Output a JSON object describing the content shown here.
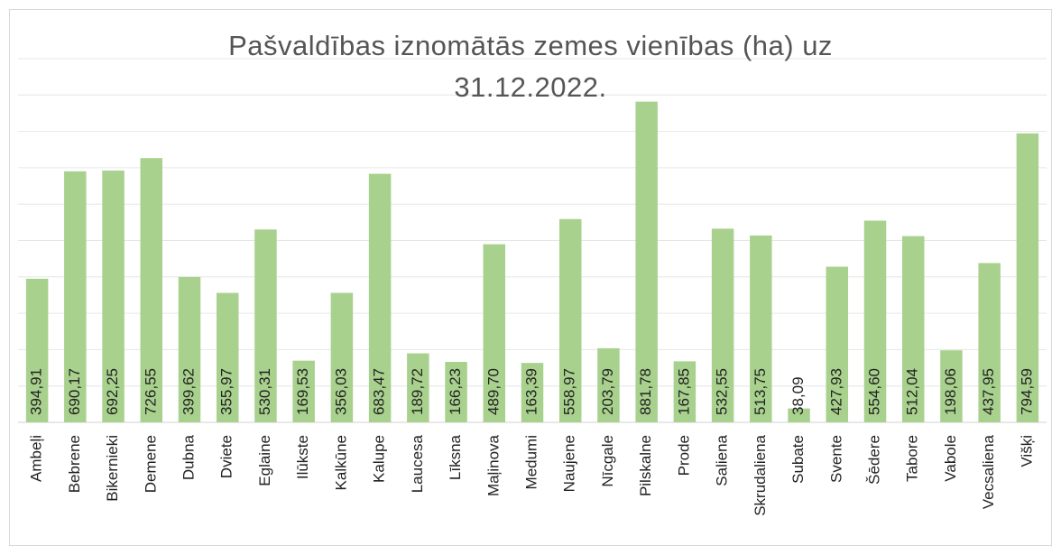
{
  "chart_data": {
    "type": "bar",
    "title": "Pašvaldības iznomātās zemes vienības (ha) uz 31.12.2022.",
    "categories": [
      "Ambeļi",
      "Bebrene",
      "Bikernieki",
      "Demene",
      "Dubna",
      "Dviete",
      "Eglaine",
      "Ilūkste",
      "Kalkūne",
      "Kalupe",
      "Laucesa",
      "Līksna",
      "Maļinova",
      "Medumi",
      "Naujene",
      "Nīcgale",
      "Pilskalne",
      "Prode",
      "Saliena",
      "Skrudaliena",
      "Subate",
      "Svente",
      "Šēdere",
      "Tabore",
      "Vabole",
      "Vecsaliena",
      "Višķi"
    ],
    "values": [
      394.91,
      690.17,
      692.25,
      726.55,
      399.62,
      355.97,
      530.31,
      169.53,
      356.03,
      683.47,
      189.72,
      166.23,
      489.7,
      163.39,
      558.97,
      203.79,
      881.78,
      167.85,
      532.55,
      513.75,
      38.09,
      427.93,
      554.6,
      512.04,
      198.06,
      437.95,
      794.59
    ],
    "value_labels": [
      "394,91",
      "690,17",
      "692,25",
      "726,55",
      "399,62",
      "355,97",
      "530,31",
      "169,53",
      "356,03",
      "683,47",
      "189,72",
      "166,23",
      "489,70",
      "163,39",
      "558,97",
      "203,79",
      "881,78",
      "167,85",
      "532,55",
      "513,75",
      "38,09",
      "427,93",
      "554,60",
      "512,04",
      "198,06",
      "437,95",
      "794,59"
    ],
    "color": "#a9d18e",
    "ylim": [
      0,
      1000
    ],
    "yticks": [
      0,
      100,
      200,
      300,
      400,
      500,
      600,
      700,
      800,
      900,
      1000
    ],
    "grid": true
  }
}
